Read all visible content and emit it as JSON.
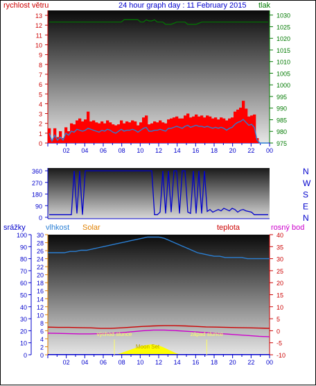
{
  "colors": {
    "wind": "#ff0000",
    "gust_avg": "#2a7fd4",
    "pressure": "#007a00",
    "direction": "#0000cc",
    "humidity": "#2a7fd4",
    "solar": "#ffff00",
    "temperature": "#cc0000",
    "dewpoint": "#cc00cc",
    "rain": "#0000cc",
    "label_blue": "#0000cc",
    "label_red": "#cc0000",
    "label_orange": "#e08000",
    "label_green": "#007a00",
    "label_purple": "#cc00cc",
    "sun_marker": "#ffff66"
  },
  "chart_data": [
    {
      "type": "line",
      "title": "24 hour graph day : 11 February 2015",
      "left_label": "rychlost větru",
      "right_label": "tlak",
      "left_ticks": [
        "0",
        "1",
        "2",
        "3",
        "4",
        "5",
        "6",
        "7",
        "8",
        "9",
        "10",
        "11",
        "12",
        "13"
      ],
      "right_ticks": [
        "975",
        "980",
        "985",
        "990",
        "995",
        "1000",
        "1005",
        "1010",
        "1015",
        "1020",
        "1025",
        "1030"
      ],
      "x_ticks": [
        "02",
        "04",
        "06",
        "08",
        "10",
        "12",
        "14",
        "16",
        "18",
        "20",
        "22",
        "00"
      ],
      "ylim": [
        0,
        13.5
      ],
      "ylim_right": [
        975,
        1032
      ],
      "series": [
        {
          "key": "wind_gust",
          "values": [
            1.5,
            0.3,
            1.5,
            0.6,
            1.2,
            0.5,
            1.6,
            1.2,
            2.0,
            1.9,
            2.3,
            2.5,
            2.2,
            2.4,
            3.2,
            2.2,
            2.3,
            2.1,
            2.0,
            2.2,
            2.0,
            2.3,
            2.1,
            1.9,
            1.8,
            1.9,
            2.3,
            2.0,
            2.2,
            2.1,
            2.3,
            2.2,
            1.8,
            2.1,
            2.6,
            2.8,
            1.9,
            2.0,
            2.2,
            2.1,
            2.3,
            2.1,
            2.0,
            2.4,
            2.5,
            2.6,
            2.7,
            2.5,
            2.5,
            2.8,
            3.0,
            2.6,
            2.7,
            2.9,
            2.7,
            2.8,
            2.6,
            2.8,
            2.7,
            2.5,
            2.6,
            2.4,
            2.6,
            2.5,
            2.3,
            2.5,
            2.6,
            3.2,
            3.4,
            3.6,
            4.3,
            3.5,
            2.7,
            2.8,
            2.9,
            0.5,
            0,
            0,
            0,
            0
          ]
        },
        {
          "key": "wind_avg",
          "values": [
            1.0,
            0.2,
            0.8,
            0.3,
            0.6,
            0.3,
            1.0,
            0.8,
            1.2,
            1.1,
            1.4,
            1.3,
            1.2,
            1.3,
            1.5,
            1.4,
            1.3,
            1.2,
            1.1,
            1.3,
            1.2,
            1.4,
            1.3,
            1.1,
            1.0,
            1.2,
            1.4,
            1.2,
            1.3,
            1.3,
            1.4,
            1.3,
            1.1,
            1.3,
            1.5,
            1.6,
            1.2,
            1.2,
            1.3,
            1.3,
            1.4,
            1.3,
            1.2,
            1.5,
            1.5,
            1.6,
            1.7,
            1.6,
            1.5,
            1.7,
            1.8,
            1.6,
            1.7,
            1.8,
            1.7,
            1.7,
            1.6,
            1.7,
            1.6,
            1.5,
            1.6,
            1.5,
            1.6,
            1.5,
            1.3,
            1.5,
            1.6,
            1.9,
            2.1,
            2.2,
            2.4,
            2.1,
            1.8,
            1.9,
            1.6,
            0.3,
            0,
            0,
            0,
            0
          ]
        },
        {
          "key": "pressure",
          "values": [
            1027.0,
            1027.0,
            1027.0,
            1027.0,
            1027.0,
            1027.0,
            1027.0,
            1027.0,
            1027.0,
            1027.0,
            1027.0,
            1027.0,
            1027.0,
            1027.0,
            1027.0,
            1027.0,
            1027.0,
            1027.0,
            1027.0,
            1027.0,
            1027.0,
            1027.0,
            1027.0,
            1027.0,
            1027.0,
            1027.0,
            1027.0,
            1028.0,
            1028.0,
            1028.0,
            1028.0,
            1028.0,
            1028.0,
            1027.0,
            1027.0,
            1028.0,
            1027.5,
            1027.5,
            1028.0,
            1027.0,
            1027.0,
            1027.0,
            1026.0,
            1026.0,
            1026.0,
            1026.5,
            1027.0,
            1027.0,
            1027.0,
            1027.0,
            1026.0,
            1026.0,
            1026.0,
            1026.0,
            1026.5,
            1027.0,
            1027.0,
            1027.0,
            1027.0,
            1027.0,
            1027.0,
            1027.0,
            1027.0,
            1027.0,
            1027.0,
            1027.0,
            1027.0,
            1027.0,
            1027.0,
            1027.0,
            1027.0,
            1027.0,
            1027.0,
            1027.0,
            1027.0,
            1027.0,
            1027.0,
            1027.0,
            1027.0,
            1027.0
          ]
        }
      ]
    },
    {
      "type": "line",
      "left_ticks": [
        "0",
        "90",
        "180",
        "270",
        "360"
      ],
      "right_labels": [
        "N",
        "W",
        "S",
        "E",
        "N"
      ],
      "ylim": [
        0,
        360
      ],
      "series": [
        {
          "key": "direction",
          "values": [
            20,
            20,
            20,
            20,
            20,
            20,
            20,
            20,
            20,
            360,
            30,
            360,
            20,
            360,
            360,
            360,
            360,
            360,
            360,
            360,
            360,
            360,
            360,
            360,
            360,
            360,
            360,
            360,
            360,
            360,
            360,
            360,
            360,
            360,
            360,
            360,
            360,
            360,
            20,
            20,
            40,
            360,
            30,
            360,
            40,
            360,
            360,
            30,
            360,
            360,
            40,
            30,
            360,
            30,
            360,
            30,
            360,
            45,
            60,
            40,
            50,
            60,
            50,
            70,
            60,
            50,
            70,
            60,
            40,
            55,
            60,
            50,
            45,
            40,
            20,
            20,
            20,
            20,
            20,
            20
          ]
        }
      ]
    },
    {
      "type": "line",
      "labels": {
        "rain": "srážky",
        "humidity": "vlhkost",
        "solar": "Solar",
        "temperature": "teplota",
        "dewpoint": "rosný bod"
      },
      "far_left_ticks": [
        "0",
        "10",
        "20",
        "30",
        "40",
        "50",
        "60",
        "70",
        "80",
        "90",
        "100"
      ],
      "left_ticks": [
        "0",
        "2",
        "4",
        "6",
        "8",
        "10",
        "12",
        "14",
        "16",
        "18",
        "20",
        "22",
        "24",
        "26",
        "28",
        "30"
      ],
      "right_ticks": [
        "-10",
        "-5",
        "0",
        "5",
        "10",
        "15",
        "20",
        "25",
        "30",
        "35",
        "40"
      ],
      "x_ticks": [
        "02",
        "04",
        "06",
        "08",
        "10",
        "12",
        "14",
        "16",
        "18",
        "20",
        "22",
        "00"
      ],
      "annotations": {
        "sunrise": "východ slunce",
        "sunset": "západ slunce",
        "moon": "Moon Set"
      },
      "series": [
        {
          "key": "humidity",
          "values": [
            85,
            85,
            85,
            85,
            86,
            86,
            87,
            87,
            88,
            89,
            90,
            91,
            92,
            93,
            94,
            95,
            96,
            97,
            98,
            98,
            98,
            97,
            95,
            93,
            91,
            89,
            87,
            85,
            84,
            83,
            82,
            82,
            81,
            81,
            81,
            81,
            80,
            80,
            80,
            80,
            80
          ]
        },
        {
          "key": "temperature",
          "values": [
            1.5,
            1.4,
            1.4,
            1.3,
            1.2,
            1.0,
            1.0,
            1.2,
            1.5,
            1.8,
            2.0,
            2.1,
            2.1,
            2.0,
            1.8,
            1.6,
            1.5,
            1.4,
            1.3,
            1.2,
            1.1,
            1.0
          ]
        },
        {
          "key": "dewpoint",
          "values": [
            -1.0,
            -1.1,
            -1.2,
            -1.3,
            -1.3,
            -1.2,
            -1.0,
            -0.8,
            -0.4,
            0.0,
            0.3,
            0.3,
            0.1,
            -0.2,
            -0.5,
            -0.8,
            -1.1,
            -1.4,
            -1.7,
            -2.0,
            -2.3,
            -2.5
          ]
        },
        {
          "key": "solar",
          "values": [
            0,
            0,
            0,
            0,
            0,
            0,
            0,
            0,
            0,
            0,
            0,
            0,
            0,
            0,
            0,
            0,
            0,
            0,
            0,
            0,
            0.1,
            0.4,
            0.7,
            1.0,
            1.3,
            1.6,
            1.9,
            2.2,
            2.4,
            2.5,
            2.6,
            2.5,
            2.3,
            2.0,
            1.6,
            1.2,
            0.8,
            0.4,
            0.1,
            0,
            0,
            0,
            0,
            0,
            0,
            0,
            0,
            0,
            0,
            0,
            0,
            0,
            0,
            0,
            0,
            0,
            0,
            0,
            0,
            0,
            0,
            0,
            0,
            0,
            0
          ]
        },
        {
          "key": "rain",
          "values": [
            0.2,
            0.2,
            0.2,
            0.2,
            0.2,
            0.2,
            0.2,
            0.2,
            0.2,
            0.2,
            0.2,
            0.2,
            0.2,
            0.2,
            0.2,
            0.2,
            0.2,
            0.2,
            0.2,
            0.2
          ]
        }
      ],
      "sunrise_hour": 7.2,
      "sunset_hour": 17.2
    }
  ]
}
